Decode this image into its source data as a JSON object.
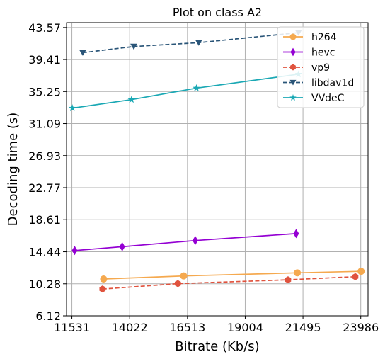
{
  "chart_data": {
    "type": "line",
    "title": "Plot on class A2",
    "xlabel": "Bitrate (Kb/s)",
    "ylabel": "Decoding time (s)",
    "xlim": [
      11300,
      24300
    ],
    "ylim": [
      6.12,
      44.2
    ],
    "x_ticks": [
      11531,
      14022,
      16513,
      19004,
      21495,
      23986
    ],
    "y_ticks": [
      6.12,
      10.28,
      14.44,
      18.61,
      22.77,
      26.93,
      31.09,
      35.25,
      39.41,
      43.57
    ],
    "x_tick_labels": [
      "11531",
      "14022",
      "16513",
      "19004",
      "21495",
      "23986"
    ],
    "y_tick_labels": [
      "6.12",
      "10.28",
      "14.44",
      "18.61",
      "22.77",
      "26.93",
      "31.09",
      "35.25",
      "39.41",
      "43.57"
    ],
    "grid": true,
    "legend_position": "top-right",
    "series": [
      {
        "name": "h264",
        "color": "#f5a94f",
        "marker": "circle",
        "dash": false,
        "x": [
          12900,
          16350,
          21250,
          24000
        ],
        "y": [
          10.9,
          11.3,
          11.7,
          11.9
        ]
      },
      {
        "name": "hevc",
        "color": "#9400d3",
        "marker": "diamond",
        "dash": false,
        "x": [
          11650,
          13700,
          16850,
          21200
        ],
        "y": [
          14.6,
          15.1,
          15.9,
          16.8
        ]
      },
      {
        "name": "vp9",
        "color": "#e0533e",
        "marker": "hexagon",
        "dash": true,
        "x": [
          12850,
          16100,
          20850,
          23750
        ],
        "y": [
          9.6,
          10.3,
          10.8,
          11.2
        ]
      },
      {
        "name": "libdav1d",
        "color": "#2a5578",
        "marker": "triangle-down",
        "dash": true,
        "x": [
          12000,
          14200,
          17000,
          21300
        ],
        "y": [
          40.3,
          41.1,
          41.6,
          42.9
        ]
      },
      {
        "name": "VVdeC",
        "color": "#1aa8b4",
        "marker": "star",
        "dash": false,
        "x": [
          11550,
          14100,
          16900,
          21300
        ],
        "y": [
          33.1,
          34.2,
          35.7,
          37.5
        ]
      }
    ]
  }
}
